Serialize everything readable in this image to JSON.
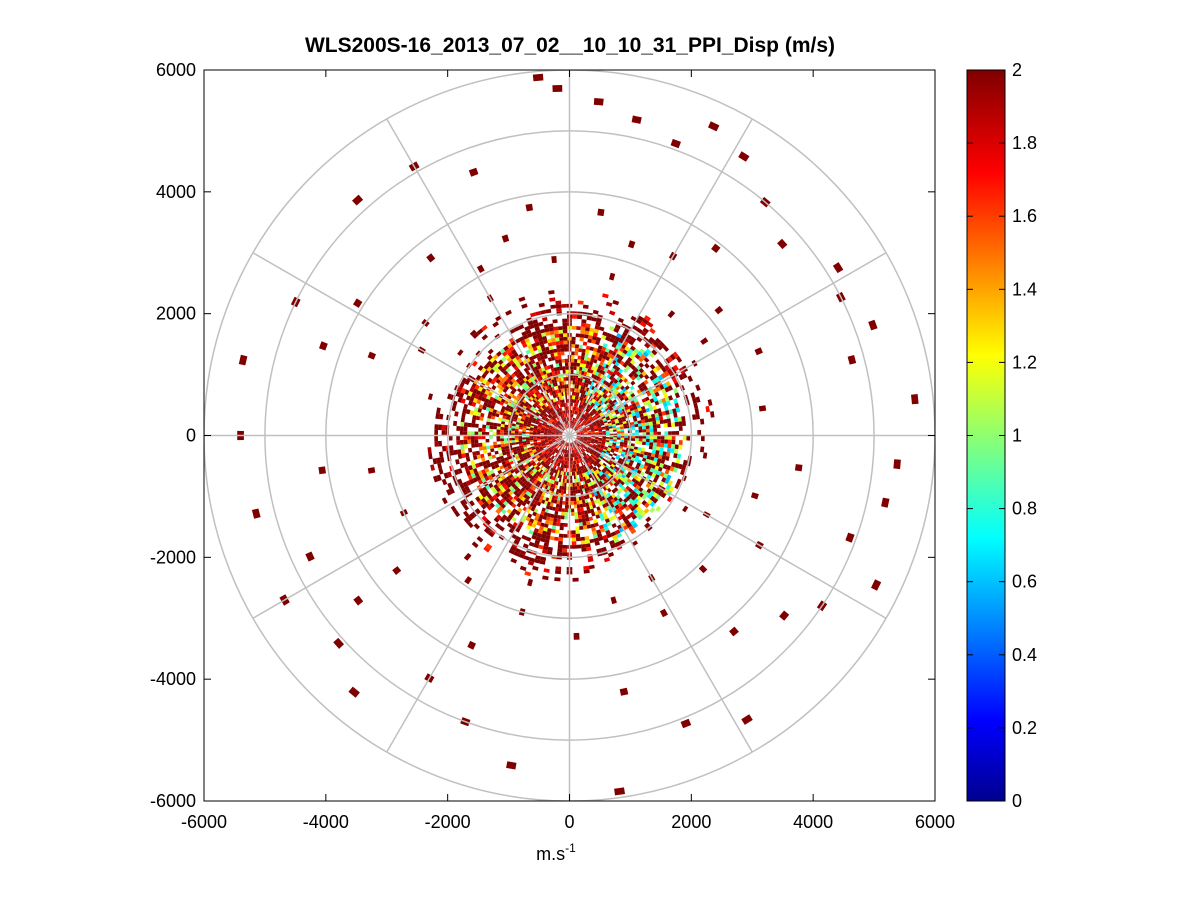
{
  "chart_data": {
    "type": "heatmap",
    "subtype": "polar-ppi",
    "title": "WLS200S-16_2013_07_02__10_10_31_PPI_Disp (m/s)",
    "xlabel_base": "m.s",
    "xlabel_sup": "-1",
    "ylabel": "",
    "xlim": [
      -6000,
      6000
    ],
    "ylim": [
      -6000,
      6000
    ],
    "xticks": [
      -6000,
      -4000,
      -2000,
      0,
      2000,
      4000,
      6000
    ],
    "yticks": [
      -6000,
      -4000,
      -2000,
      0,
      2000,
      4000,
      6000
    ],
    "xtick_labels": [
      "-6000",
      "-4000",
      "-2000",
      "0",
      "2000",
      "4000",
      "6000"
    ],
    "ytick_labels": [
      "-6000",
      "-4000",
      "-2000",
      "0",
      "2000",
      "4000",
      "6000"
    ],
    "polar_grid": {
      "rings": [
        1000,
        2000,
        3000,
        4000,
        5000,
        6000
      ],
      "spokes_deg": [
        0,
        30,
        60,
        90,
        120,
        150,
        180,
        210,
        240,
        270,
        300,
        330
      ]
    },
    "colorbar": {
      "min": 0,
      "max": 2,
      "ticks": [
        0,
        0.2,
        0.4,
        0.6,
        0.8,
        1,
        1.2,
        1.4,
        1.6,
        1.8,
        2
      ],
      "tick_labels": [
        "0",
        "0.2",
        "0.4",
        "0.6",
        "0.8",
        "1",
        "1.2",
        "1.4",
        "1.6",
        "1.8",
        "2"
      ],
      "colormap": "jet"
    },
    "value_range_note": "values 0-2 m/s; near-range mixed 0.6-2, far range saturated 2",
    "outer_cells_polar": [
      [
        5900,
        355,
        2
      ],
      [
        5700,
        358,
        2
      ],
      [
        5500,
        5,
        2
      ],
      [
        5300,
        12,
        2
      ],
      [
        5100,
        20,
        2
      ],
      [
        5600,
        25,
        2
      ],
      [
        5400,
        32,
        2
      ],
      [
        5000,
        40,
        2
      ],
      [
        4700,
        48,
        2
      ],
      [
        5200,
        58,
        2
      ],
      [
        5000,
        63,
        2
      ],
      [
        5300,
        70,
        2
      ],
      [
        4800,
        75,
        2
      ],
      [
        5700,
        84,
        2
      ],
      [
        5400,
        95,
        2
      ],
      [
        5300,
        102,
        2
      ],
      [
        4900,
        110,
        2
      ],
      [
        5600,
        116,
        2
      ],
      [
        5000,
        124,
        2
      ],
      [
        4600,
        130,
        2
      ],
      [
        4200,
        140,
        2
      ],
      [
        5500,
        148,
        2
      ],
      [
        5100,
        158,
        2
      ],
      [
        4300,
        168,
        2
      ],
      [
        5900,
        172,
        2
      ],
      [
        5500,
        190,
        2
      ],
      [
        5000,
        200,
        2
      ],
      [
        4600,
        210,
        2
      ],
      [
        5500,
        220,
        2
      ],
      [
        5100,
        228,
        2
      ],
      [
        4400,
        232,
        2
      ],
      [
        5400,
        240,
        2
      ],
      [
        4700,
        245,
        2
      ],
      [
        5300,
        256,
        2
      ],
      [
        4100,
        262,
        2
      ],
      [
        5400,
        270,
        2
      ],
      [
        5500,
        283,
        2
      ],
      [
        4300,
        290,
        2
      ],
      [
        5000,
        296,
        2
      ],
      [
        4100,
        302,
        2
      ],
      [
        5200,
        318,
        2
      ],
      [
        5100,
        330,
        2
      ],
      [
        4600,
        340,
        2
      ],
      [
        3800,
        350,
        2
      ],
      [
        3700,
        8,
        2
      ],
      [
        3300,
        18,
        2
      ],
      [
        3400,
        30,
        2
      ],
      [
        3900,
        38,
        2
      ],
      [
        3200,
        50,
        2
      ],
      [
        3400,
        66,
        2
      ],
      [
        3200,
        82,
        2
      ],
      [
        3800,
        98,
        2
      ],
      [
        3200,
        108,
        2
      ],
      [
        3600,
        120,
        2
      ],
      [
        3100,
        135,
        2
      ],
      [
        3300,
        152,
        2
      ],
      [
        2800,
        165,
        2
      ],
      [
        3300,
        178,
        2
      ],
      [
        3000,
        195,
        2
      ],
      [
        3800,
        205,
        2
      ],
      [
        2900,
        215,
        2
      ],
      [
        3600,
        232,
        2
      ],
      [
        3000,
        245,
        2
      ],
      [
        3300,
        260,
        2
      ],
      [
        3500,
        292,
        2
      ],
      [
        3000,
        308,
        2
      ],
      [
        3700,
        322,
        2
      ],
      [
        3100,
        332,
        2
      ],
      [
        3400,
        342,
        2
      ],
      [
        2900,
        355,
        2
      ],
      [
        2700,
        15,
        2
      ],
      [
        2600,
        40,
        2
      ],
      [
        2700,
        55,
        2
      ],
      [
        2600,
        120,
        2
      ],
      [
        2700,
        150,
        2
      ],
      [
        2500,
        195,
        2
      ],
      [
        2600,
        220,
        2
      ],
      [
        2800,
        300,
        2
      ],
      [
        2600,
        330,
        2
      ]
    ]
  }
}
